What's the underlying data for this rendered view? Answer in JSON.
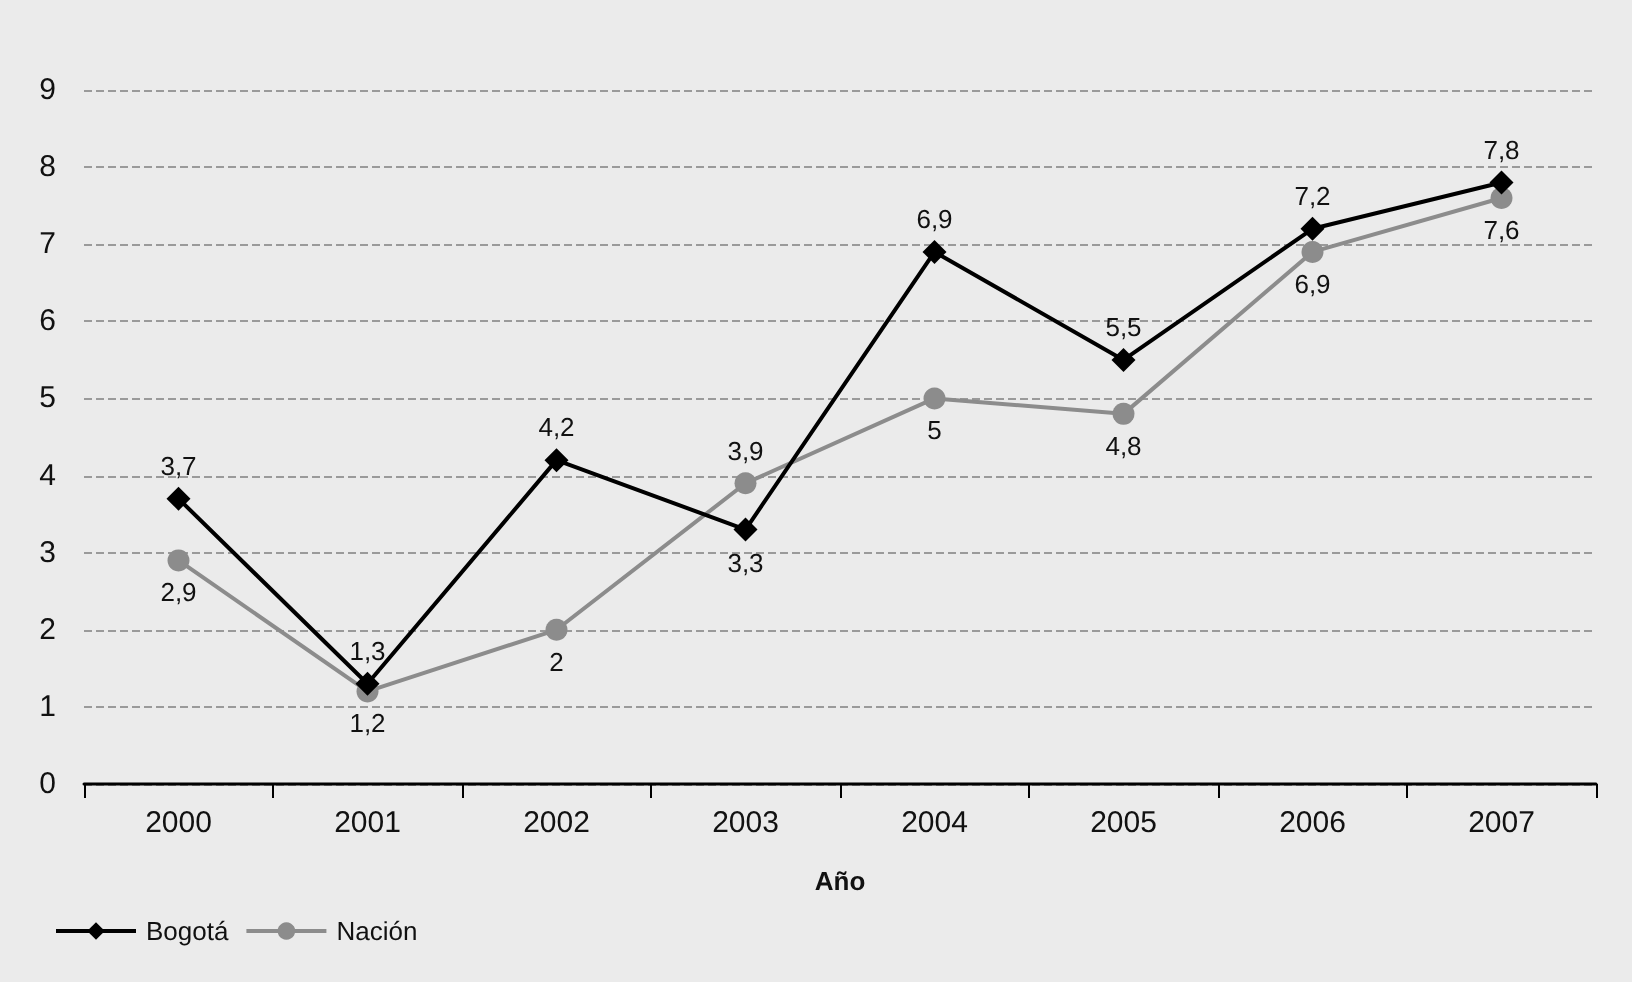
{
  "chart_data": {
    "type": "line",
    "xlabel": "Año",
    "categories": [
      "2000",
      "2001",
      "2002",
      "2003",
      "2004",
      "2005",
      "2006",
      "2007"
    ],
    "series": [
      {
        "name": "Bogotá",
        "color": "#000000",
        "marker": "diamond",
        "values": [
          3.7,
          1.3,
          4.2,
          3.3,
          6.9,
          5.5,
          7.2,
          7.8
        ],
        "value_labels": [
          "3,7",
          "1,3",
          "4,2",
          "3,3",
          "6,9",
          "5,5",
          "7,2",
          "7,8"
        ]
      },
      {
        "name": "Nación",
        "color": "#8c8c8c",
        "marker": "circle",
        "values": [
          2.9,
          1.2,
          2,
          3.9,
          5,
          4.8,
          6.9,
          7.6
        ],
        "value_labels": [
          "2,9",
          "1,2",
          "2",
          "3,9",
          "5",
          "4,8",
          "6,9",
          "7,6"
        ]
      }
    ],
    "ylim": [
      0,
      9
    ],
    "yticks": [
      0,
      1,
      2,
      3,
      4,
      5,
      6,
      7,
      8,
      9
    ],
    "grid": "y",
    "legend": "bottom left"
  }
}
